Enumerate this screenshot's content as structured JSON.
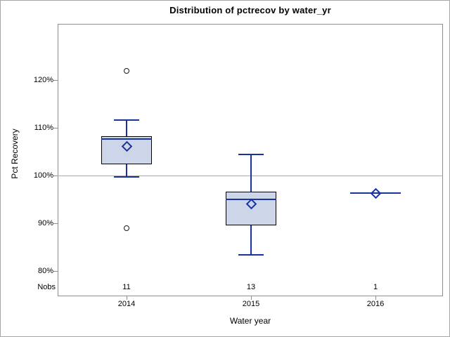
{
  "figure": {
    "background": "#ffffff",
    "border_color": "#a6a6a6"
  },
  "chart_data": {
    "type": "box",
    "title": "Distribution of pctrecov by water_yr",
    "xlabel": "Water year",
    "ylabel": "Pct Recovery",
    "nobs_label": "Nobs",
    "x_categories": [
      "2014",
      "2015",
      "2016"
    ],
    "yticks": [
      80,
      90,
      100,
      110,
      120
    ],
    "ytick_labels": [
      "80%",
      "90%",
      "100%",
      "110%",
      "120%"
    ],
    "ylim": [
      74.7,
      131.8
    ],
    "reference_line": 100,
    "grid": false,
    "legend": "none",
    "groups": [
      {
        "category": "2014",
        "nobs": "11",
        "whisker_low": 99.7,
        "q1": 102.3,
        "median": 107.6,
        "q3": 108.3,
        "whisker_high": 111.7,
        "mean": 106.1,
        "outliers": [
          122,
          89
        ]
      },
      {
        "category": "2015",
        "nobs": "13",
        "whisker_low": 83.4,
        "q1": 89.6,
        "median": 95.0,
        "q3": 96.7,
        "whisker_high": 104.5,
        "mean": 94.0,
        "outliers": []
      },
      {
        "category": "2016",
        "nobs": "1",
        "whisker_low": null,
        "q1": 96.3,
        "median": 96.3,
        "q3": 96.3,
        "whisker_high": null,
        "mean": 96.3,
        "outliers": []
      }
    ],
    "colors": {
      "box_fill": "#ccd6e8",
      "box_border": "#000000",
      "whisker": "#16339e",
      "median": "#16339e",
      "mean_marker": "#16339e",
      "outlier": "#1a1a1a",
      "reference_line": "#aaaaaa",
      "plot_border": "#8f8f8f",
      "tick_mark": "#8f8f8f",
      "axis_text": "#000000"
    }
  }
}
